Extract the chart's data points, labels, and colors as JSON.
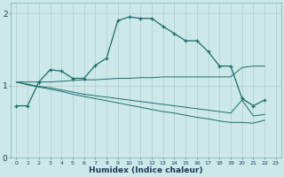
{
  "xlabel": "Humidex (Indice chaleur)",
  "bg_color": "#cce8e8",
  "line_color": "#1a6e6a",
  "grid_color_major": "#b0cccc",
  "grid_color_minor": "#d8ecec",
  "xlim": [
    -0.5,
    23.5
  ],
  "ylim": [
    0,
    2.15
  ],
  "yticks": [
    0,
    1,
    2
  ],
  "xticks": [
    0,
    1,
    2,
    3,
    4,
    5,
    6,
    7,
    8,
    9,
    10,
    11,
    12,
    13,
    14,
    15,
    16,
    17,
    18,
    19,
    20,
    21,
    22,
    23
  ],
  "line1_x": [
    0,
    1,
    2,
    3,
    4,
    5,
    6,
    7,
    8,
    9,
    10,
    11,
    12,
    13,
    14,
    15,
    16,
    17,
    18,
    19,
    20,
    21,
    22
  ],
  "line1_y": [
    0.72,
    0.72,
    1.05,
    1.22,
    1.2,
    1.1,
    1.1,
    1.28,
    1.38,
    1.9,
    1.95,
    1.93,
    1.93,
    1.82,
    1.72,
    1.62,
    1.62,
    1.47,
    1.27,
    1.27,
    0.82,
    0.72,
    0.8
  ],
  "line2_x": [
    0,
    1,
    2,
    3,
    4,
    5,
    6,
    7,
    8,
    9,
    10,
    11,
    12,
    13,
    14,
    15,
    16,
    17,
    18,
    19,
    20,
    21,
    22,
    23
  ],
  "line2_y": [
    1.05,
    1.05,
    1.05,
    1.05,
    1.06,
    1.07,
    1.08,
    1.08,
    1.09,
    1.1,
    1.1,
    1.11,
    1.11,
    1.12,
    1.12,
    1.12,
    1.12,
    1.12,
    1.12,
    1.12,
    1.25,
    1.27,
    1.27,
    null
  ],
  "line3_x": [
    0,
    1,
    2,
    3,
    4,
    5,
    6,
    7,
    8,
    9,
    10,
    11,
    12,
    13,
    14,
    15,
    16,
    17,
    18,
    19,
    20,
    21,
    22,
    23
  ],
  "line3_y": [
    1.05,
    1.02,
    0.99,
    0.97,
    0.94,
    0.91,
    0.88,
    0.86,
    0.84,
    0.82,
    0.8,
    0.78,
    0.76,
    0.74,
    0.72,
    0.7,
    0.68,
    0.66,
    0.64,
    0.62,
    0.8,
    0.58,
    0.6,
    null
  ],
  "line4_x": [
    0,
    1,
    2,
    3,
    4,
    5,
    6,
    7,
    8,
    9,
    10,
    11,
    12,
    13,
    14,
    15,
    16,
    17,
    18,
    19,
    20,
    21,
    22,
    23
  ],
  "line4_y": [
    1.05,
    1.01,
    0.98,
    0.95,
    0.92,
    0.88,
    0.85,
    0.82,
    0.79,
    0.76,
    0.73,
    0.7,
    0.67,
    0.64,
    0.62,
    0.59,
    0.56,
    0.54,
    0.51,
    0.49,
    0.49,
    0.48,
    0.52,
    null
  ]
}
